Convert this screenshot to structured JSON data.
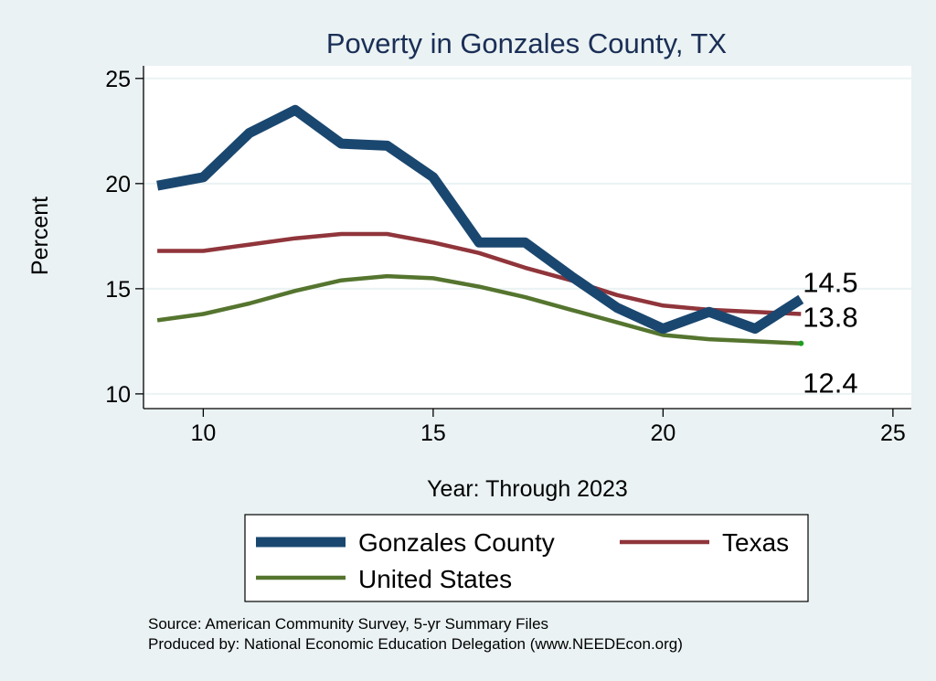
{
  "chart_data": {
    "type": "line",
    "title": "Poverty in Gonzales County, TX",
    "xlabel": "Year: Through 2023",
    "ylabel": "Percent",
    "xlim": [
      8.7,
      25.4
    ],
    "ylim": [
      9.3,
      25.6
    ],
    "xticks": [
      10,
      15,
      20,
      25
    ],
    "yticks": [
      10,
      15,
      20,
      25
    ],
    "grid": true,
    "series": [
      {
        "name": "Gonzales County",
        "color": "#1a476f",
        "x": [
          9,
          10,
          11,
          12,
          13,
          14,
          15,
          16,
          17,
          18,
          19,
          20,
          21,
          22,
          23
        ],
        "values": [
          19.9,
          20.3,
          22.4,
          23.5,
          21.9,
          21.8,
          20.3,
          17.2,
          17.2,
          15.6,
          14.1,
          13.1,
          13.9,
          13.1,
          14.5
        ]
      },
      {
        "name": "Texas",
        "color": "#90353b",
        "x": [
          9,
          10,
          11,
          12,
          13,
          14,
          15,
          16,
          17,
          18,
          19,
          20,
          21,
          22,
          23
        ],
        "values": [
          16.8,
          16.8,
          17.1,
          17.4,
          17.6,
          17.6,
          17.2,
          16.7,
          16.0,
          15.4,
          14.7,
          14.2,
          14.0,
          13.9,
          13.8
        ]
      },
      {
        "name": "United States",
        "color": "#55752f",
        "x": [
          9,
          10,
          11,
          12,
          13,
          14,
          15,
          16,
          17,
          18,
          19,
          20,
          21,
          22,
          23
        ],
        "values": [
          13.5,
          13.8,
          14.3,
          14.9,
          15.4,
          15.6,
          15.5,
          15.1,
          14.6,
          14.0,
          13.4,
          12.8,
          12.6,
          12.5,
          12.4
        ]
      }
    ],
    "end_labels": [
      "14.5",
      "13.8",
      "12.4"
    ],
    "legend": {
      "placement": "bottom",
      "entries": [
        "Gonzales County",
        "Texas",
        "United States"
      ]
    },
    "notes": [
      "Source: American Community Survey, 5-yr Summary Files",
      "Produced by: National Economic Education Delegation (www.NEEDEcon.org)"
    ]
  }
}
